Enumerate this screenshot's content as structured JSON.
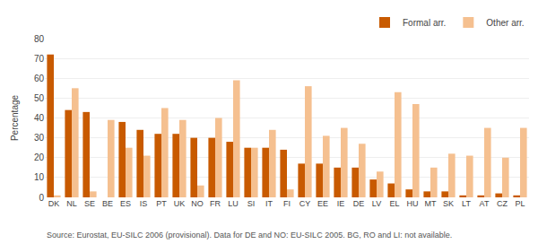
{
  "chart_data": {
    "type": "bar",
    "ylabel": "Percentage",
    "categories": [
      "DK",
      "NL",
      "SE",
      "BE",
      "ES",
      "IS",
      "PT",
      "UK",
      "NO",
      "FR",
      "LU",
      "SI",
      "IT",
      "FI",
      "CY",
      "EE",
      "IE",
      "DE",
      "LV",
      "EL",
      "HU",
      "MT",
      "SK",
      "LT",
      "AT",
      "CZ",
      "PL"
    ],
    "series": [
      {
        "name": "Formal arr.",
        "color": "#C85A00",
        "values": [
          72,
          44,
          43,
          0,
          38,
          34,
          32,
          32,
          30,
          30,
          28,
          25,
          25,
          24,
          17,
          17,
          15,
          15,
          9,
          7,
          4,
          3,
          3,
          1,
          1,
          2,
          1
        ]
      },
      {
        "name": "Other arr.",
        "color": "#F5C090",
        "values": [
          1,
          55,
          3,
          39,
          25,
          21,
          45,
          39,
          6,
          40,
          59,
          25,
          34,
          4,
          56,
          31,
          35,
          27,
          13,
          53,
          47,
          15,
          22,
          21,
          35,
          20,
          35
        ]
      }
    ],
    "ylim": [
      0,
      80
    ],
    "yticks": [
      0,
      10,
      20,
      30,
      40,
      50,
      60,
      70,
      80
    ],
    "grid": true,
    "legend": "upper right",
    "annotations": [
      "Source: Eurostat, EU-SILC 2006 (provisional). Data for DE and NO: EU-SILC 2005. BG, RO and LI: not available."
    ]
  }
}
